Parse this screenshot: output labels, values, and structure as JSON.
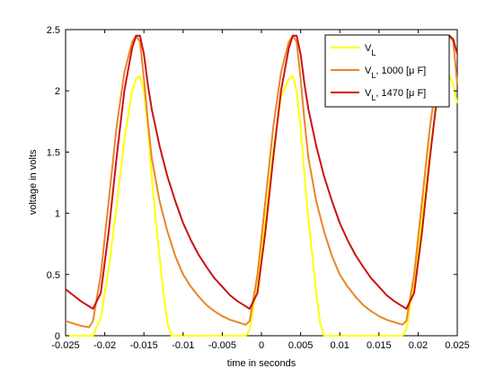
{
  "chart_data": {
    "type": "line",
    "title": "",
    "xlabel": "time in seconds",
    "ylabel": "voltage in volts",
    "xlim": [
      -0.025,
      0.025
    ],
    "ylim": [
      0,
      2.5
    ],
    "grid": false,
    "legend_position": "top-right",
    "x_ticks": [
      -0.025,
      -0.02,
      -0.015,
      -0.01,
      -0.005,
      0,
      0.005,
      0.01,
      0.015,
      0.02,
      0.025
    ],
    "x_tick_labels": [
      "-0.025",
      "-0.02",
      "-0.015",
      "-0.01",
      "-0.005",
      "0",
      "0.005",
      "0.01",
      "0.015",
      "0.02",
      "0.025"
    ],
    "y_ticks": [
      0,
      0.5,
      1,
      1.5,
      2,
      2.5
    ],
    "y_tick_labels": [
      "0",
      "0.5",
      "1",
      "1.5",
      "2",
      "2.5"
    ],
    "series": [
      {
        "name_main": "V",
        "name_sub": "L",
        "name_rest": "",
        "color": "#ffff00",
        "x": [
          -0.025,
          -0.0215,
          -0.0205,
          -0.0195,
          -0.0185,
          -0.0175,
          -0.0165,
          -0.016,
          -0.0155,
          -0.015,
          -0.0145,
          -0.014,
          -0.0135,
          -0.013,
          -0.0125,
          -0.012,
          -0.0115,
          -0.002,
          -0.0015,
          -0.0005,
          0.0005,
          0.0015,
          0.0025,
          0.0035,
          0.004,
          0.0045,
          0.005,
          0.0055,
          0.006,
          0.0065,
          0.007,
          0.0075,
          0.008,
          0.0085,
          0.018,
          0.0185,
          0.0195,
          0.0205,
          0.0215,
          0.0225,
          0.0235,
          0.024,
          0.0245,
          0.025
        ],
        "y": [
          0,
          0,
          0.15,
          0.55,
          1.05,
          1.6,
          2.0,
          2.1,
          2.12,
          2.0,
          1.7,
          1.3,
          0.95,
          0.65,
          0.35,
          0.1,
          0,
          0,
          0.05,
          0.45,
          0.95,
          1.5,
          1.95,
          2.1,
          2.12,
          2.0,
          1.7,
          1.3,
          0.95,
          0.65,
          0.35,
          0.1,
          0,
          0,
          0,
          0.05,
          0.45,
          0.95,
          1.5,
          1.95,
          2.1,
          2.12,
          2.05,
          1.9
        ]
      },
      {
        "name_main": "V",
        "name_sub": "L",
        "name_rest": ", 1000 [μ F]",
        "color": "#e8862a",
        "x": [
          -0.025,
          -0.024,
          -0.023,
          -0.022,
          -0.0215,
          -0.0205,
          -0.0195,
          -0.0185,
          -0.0175,
          -0.0165,
          -0.016,
          -0.0155,
          -0.015,
          -0.0145,
          -0.014,
          -0.013,
          -0.012,
          -0.011,
          -0.01,
          -0.009,
          -0.008,
          -0.007,
          -0.006,
          -0.005,
          -0.004,
          -0.003,
          -0.0025,
          -0.002,
          -0.0015,
          -0.0005,
          0.0005,
          0.0015,
          0.0025,
          0.0035,
          0.004,
          0.0045,
          0.005,
          0.0055,
          0.006,
          0.007,
          0.008,
          0.009,
          0.01,
          0.011,
          0.012,
          0.013,
          0.014,
          0.015,
          0.016,
          0.017,
          0.0175,
          0.018,
          0.0185,
          0.0195,
          0.0205,
          0.0215,
          0.0225,
          0.0235,
          0.024,
          0.0245,
          0.025
        ],
        "y": [
          0.12,
          0.1,
          0.08,
          0.07,
          0.12,
          0.5,
          1.1,
          1.7,
          2.15,
          2.4,
          2.45,
          2.4,
          2.1,
          1.75,
          1.45,
          1.1,
          0.85,
          0.65,
          0.5,
          0.4,
          0.32,
          0.25,
          0.2,
          0.16,
          0.13,
          0.11,
          0.1,
          0.09,
          0.12,
          0.5,
          1.1,
          1.7,
          2.15,
          2.4,
          2.45,
          2.4,
          2.1,
          1.75,
          1.45,
          1.1,
          0.85,
          0.65,
          0.5,
          0.4,
          0.32,
          0.25,
          0.2,
          0.16,
          0.13,
          0.11,
          0.1,
          0.09,
          0.12,
          0.5,
          1.1,
          1.7,
          2.15,
          2.4,
          2.45,
          2.4,
          2.05
        ]
      },
      {
        "name_main": "V",
        "name_sub": "L",
        "name_rest": ", 1470 [μ F]",
        "color": "#cc1111",
        "x": [
          -0.025,
          -0.024,
          -0.023,
          -0.022,
          -0.0215,
          -0.0205,
          -0.0195,
          -0.0185,
          -0.0175,
          -0.0165,
          -0.016,
          -0.0155,
          -0.015,
          -0.0145,
          -0.014,
          -0.013,
          -0.012,
          -0.011,
          -0.01,
          -0.009,
          -0.008,
          -0.007,
          -0.006,
          -0.005,
          -0.004,
          -0.003,
          -0.002,
          -0.0015,
          -0.0005,
          0.0005,
          0.0015,
          0.0025,
          0.0035,
          0.004,
          0.0045,
          0.005,
          0.0055,
          0.006,
          0.007,
          0.008,
          0.009,
          0.01,
          0.011,
          0.012,
          0.013,
          0.014,
          0.015,
          0.016,
          0.017,
          0.018,
          0.0185,
          0.0195,
          0.0205,
          0.0215,
          0.0225,
          0.0235,
          0.024,
          0.0245,
          0.025
        ],
        "y": [
          0.38,
          0.33,
          0.28,
          0.24,
          0.22,
          0.35,
          0.85,
          1.45,
          2.0,
          2.35,
          2.45,
          2.45,
          2.3,
          2.05,
          1.85,
          1.55,
          1.3,
          1.1,
          0.92,
          0.78,
          0.66,
          0.56,
          0.47,
          0.4,
          0.33,
          0.28,
          0.24,
          0.22,
          0.35,
          0.85,
          1.45,
          2.0,
          2.35,
          2.45,
          2.45,
          2.3,
          2.05,
          1.85,
          1.55,
          1.3,
          1.1,
          0.92,
          0.78,
          0.66,
          0.56,
          0.47,
          0.4,
          0.33,
          0.28,
          0.24,
          0.22,
          0.35,
          0.85,
          1.45,
          2.0,
          2.35,
          2.45,
          2.42,
          2.3
        ]
      }
    ]
  }
}
